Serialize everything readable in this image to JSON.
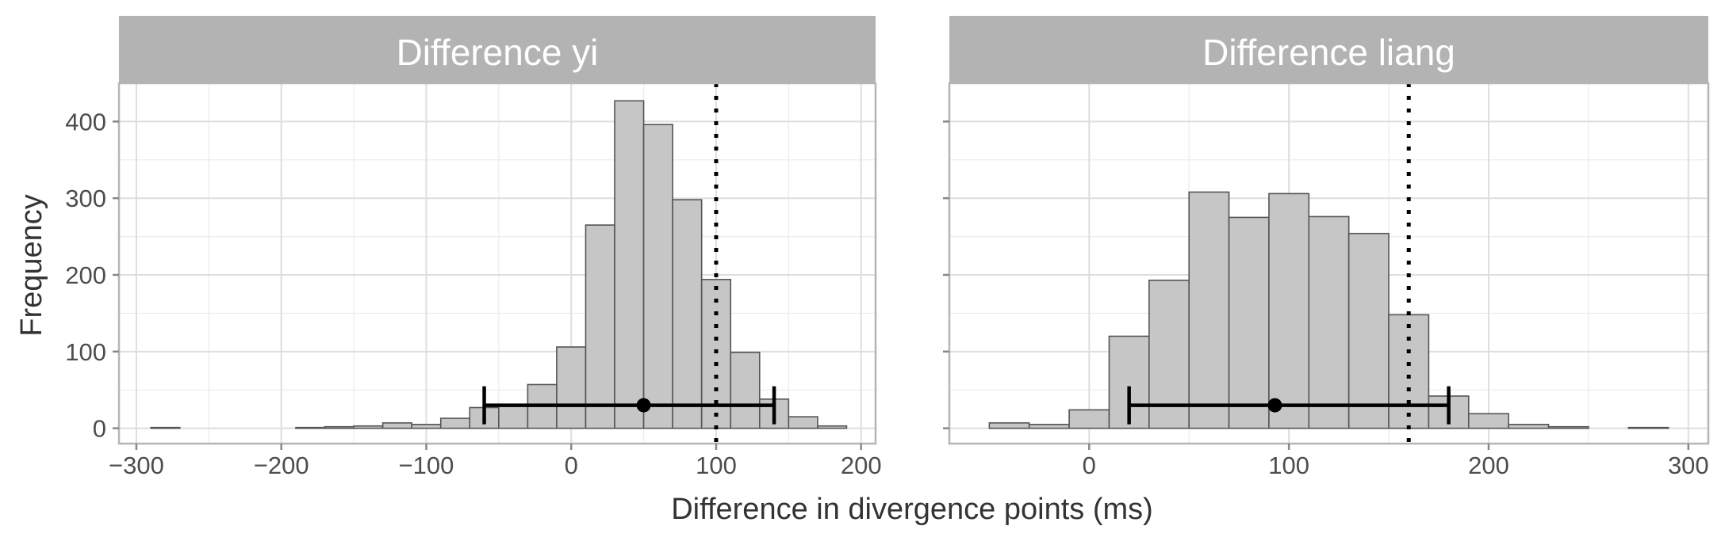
{
  "chart_data": {
    "type": "bar",
    "xlabel": "Difference in divergence points (ms)",
    "ylabel": "Frequency",
    "panels": [
      {
        "title": "Difference yi",
        "xlim": [
          -312,
          210
        ],
        "ylim": [
          -20,
          450
        ],
        "x_ticks": [
          -300,
          -200,
          -100,
          0,
          100,
          200
        ],
        "x_tick_labels": [
          "−300",
          "−200",
          "−100",
          "0",
          "100",
          "200"
        ],
        "y_ticks": [
          0,
          100,
          200,
          300,
          400
        ],
        "y_tick_labels": [
          "0",
          "100",
          "200",
          "300",
          "400"
        ],
        "bin_width": 20,
        "bin_centers": [
          -280,
          -260,
          -240,
          -220,
          -200,
          -180,
          -160,
          -140,
          -120,
          -100,
          -80,
          -60,
          -40,
          -20,
          0,
          20,
          40,
          60,
          80,
          100,
          120,
          140,
          160,
          180
        ],
        "counts": [
          1,
          0,
          0,
          0,
          0,
          1,
          2,
          3,
          7,
          5,
          13,
          27,
          31,
          57,
          106,
          265,
          427,
          396,
          298,
          194,
          99,
          38,
          15,
          3
        ],
        "reference_line": 100,
        "interval": {
          "low": -60,
          "mean": 50,
          "high": 140,
          "y": 30
        }
      },
      {
        "title": "Difference liang",
        "xlim": [
          -70,
          310
        ],
        "ylim": [
          -20,
          450
        ],
        "x_ticks": [
          0,
          100,
          200,
          300
        ],
        "x_tick_labels": [
          "0",
          "100",
          "200",
          "300"
        ],
        "y_ticks": [
          0,
          100,
          200,
          300,
          400
        ],
        "y_tick_labels": [
          "0",
          "100",
          "200",
          "300",
          "400"
        ],
        "bin_width": 20,
        "bin_centers": [
          -40,
          -20,
          0,
          20,
          40,
          60,
          80,
          100,
          120,
          140,
          160,
          180,
          200,
          220,
          240,
          260,
          280
        ],
        "counts": [
          7,
          5,
          24,
          120,
          193,
          308,
          275,
          306,
          276,
          254,
          148,
          42,
          19,
          5,
          2,
          0,
          1
        ],
        "reference_line": 160,
        "interval": {
          "low": 20,
          "mean": 93,
          "high": 180,
          "y": 30
        }
      }
    ]
  }
}
